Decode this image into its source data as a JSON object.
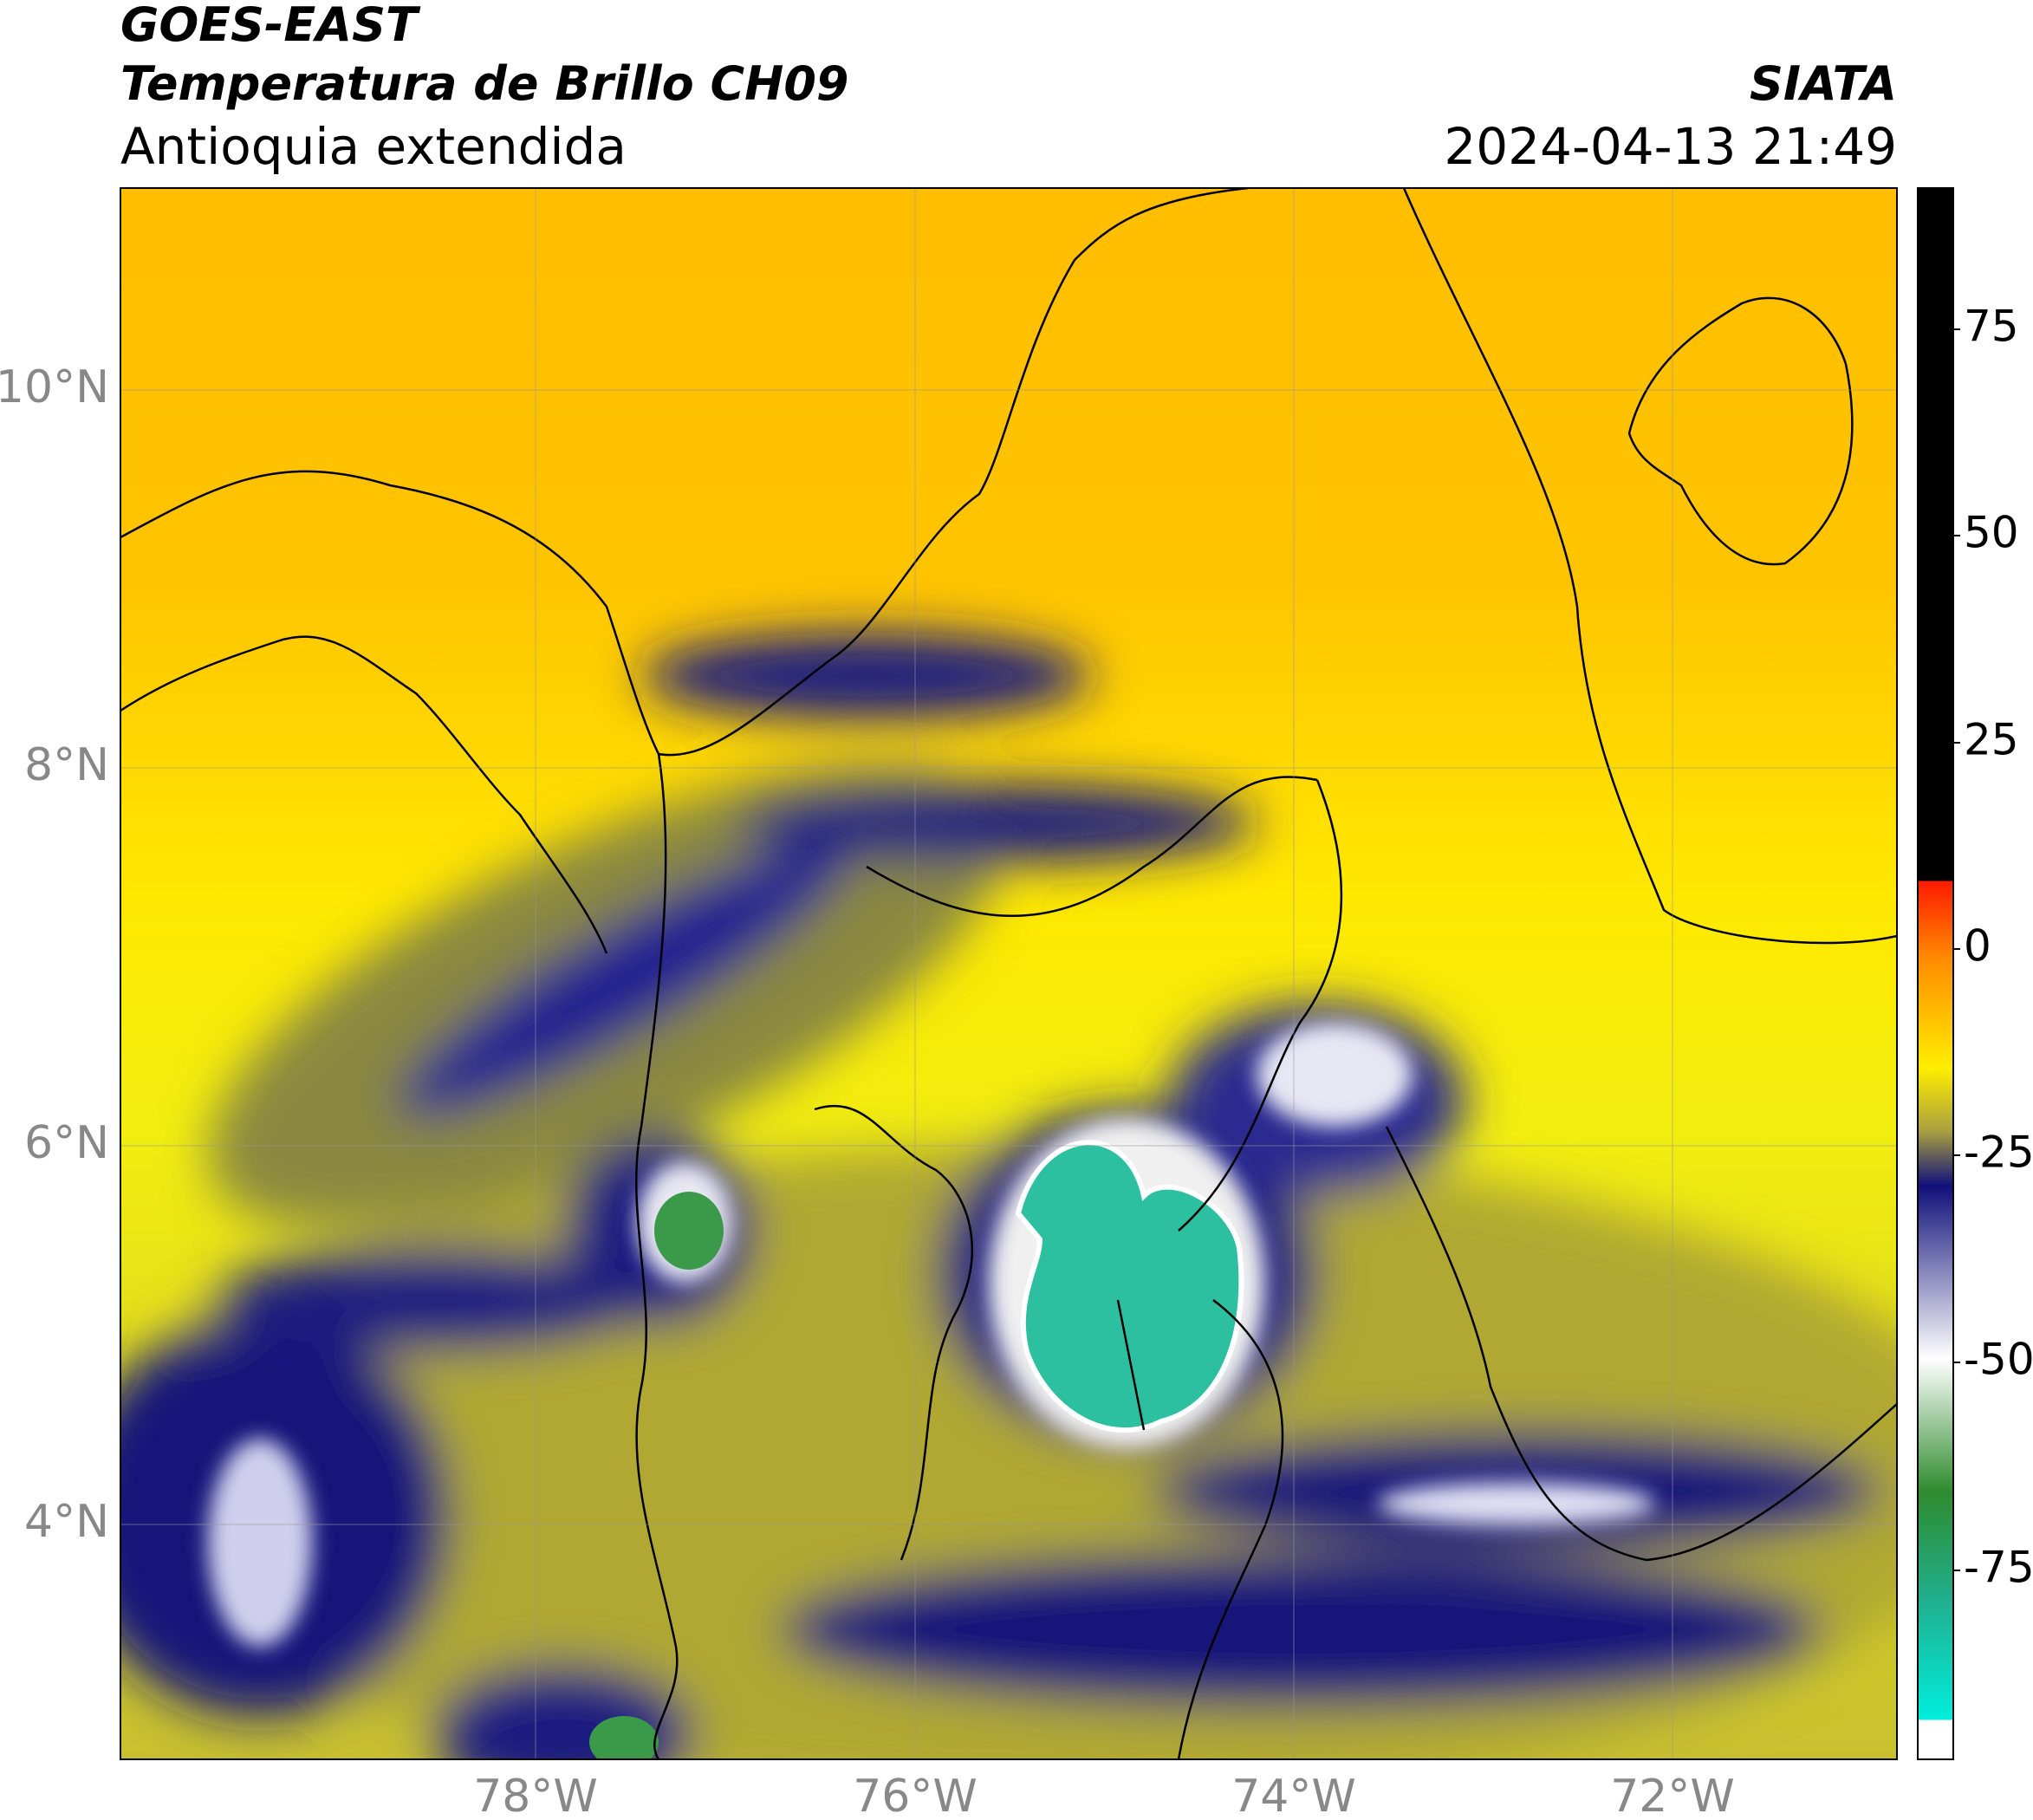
{
  "header": {
    "title": "GOES-EAST",
    "subtitle": "Temperatura de Brillo CH09",
    "region": "Antioquia extendida",
    "source": "SIATA",
    "datetime": "2024-04-13 21:49"
  },
  "map": {
    "lat_ticks": [
      "10°N",
      "8°N",
      "6°N",
      "4°N"
    ],
    "lon_ticks": [
      "78°W",
      "76°W",
      "74°W",
      "72°W"
    ]
  },
  "colorbar": {
    "ticks": [
      "75",
      "50",
      "25",
      "0",
      "-25",
      "-50",
      "-75"
    ]
  }
}
